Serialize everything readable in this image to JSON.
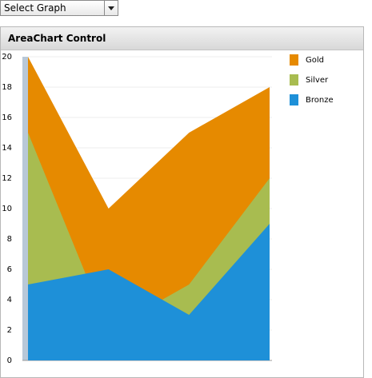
{
  "dropdown": {
    "label": "Select Graph"
  },
  "panel": {
    "title": "AreaChart Control"
  },
  "chart_data": {
    "type": "area",
    "categories": [
      null,
      null,
      null,
      null
    ],
    "series": [
      {
        "name": "Gold",
        "color": "#e68a00",
        "values": [
          20,
          10,
          15,
          18
        ]
      },
      {
        "name": "Silver",
        "color": "#a8bc50",
        "values": [
          15,
          2,
          5,
          12
        ]
      },
      {
        "name": "Bronze",
        "color": "#1e90d8",
        "values": [
          5,
          6,
          3,
          9
        ]
      }
    ],
    "ylim": [
      0,
      20
    ],
    "yticks": [
      0,
      2,
      4,
      6,
      8,
      10,
      12,
      14,
      16,
      18,
      20
    ],
    "grid": true,
    "legend": "right"
  }
}
